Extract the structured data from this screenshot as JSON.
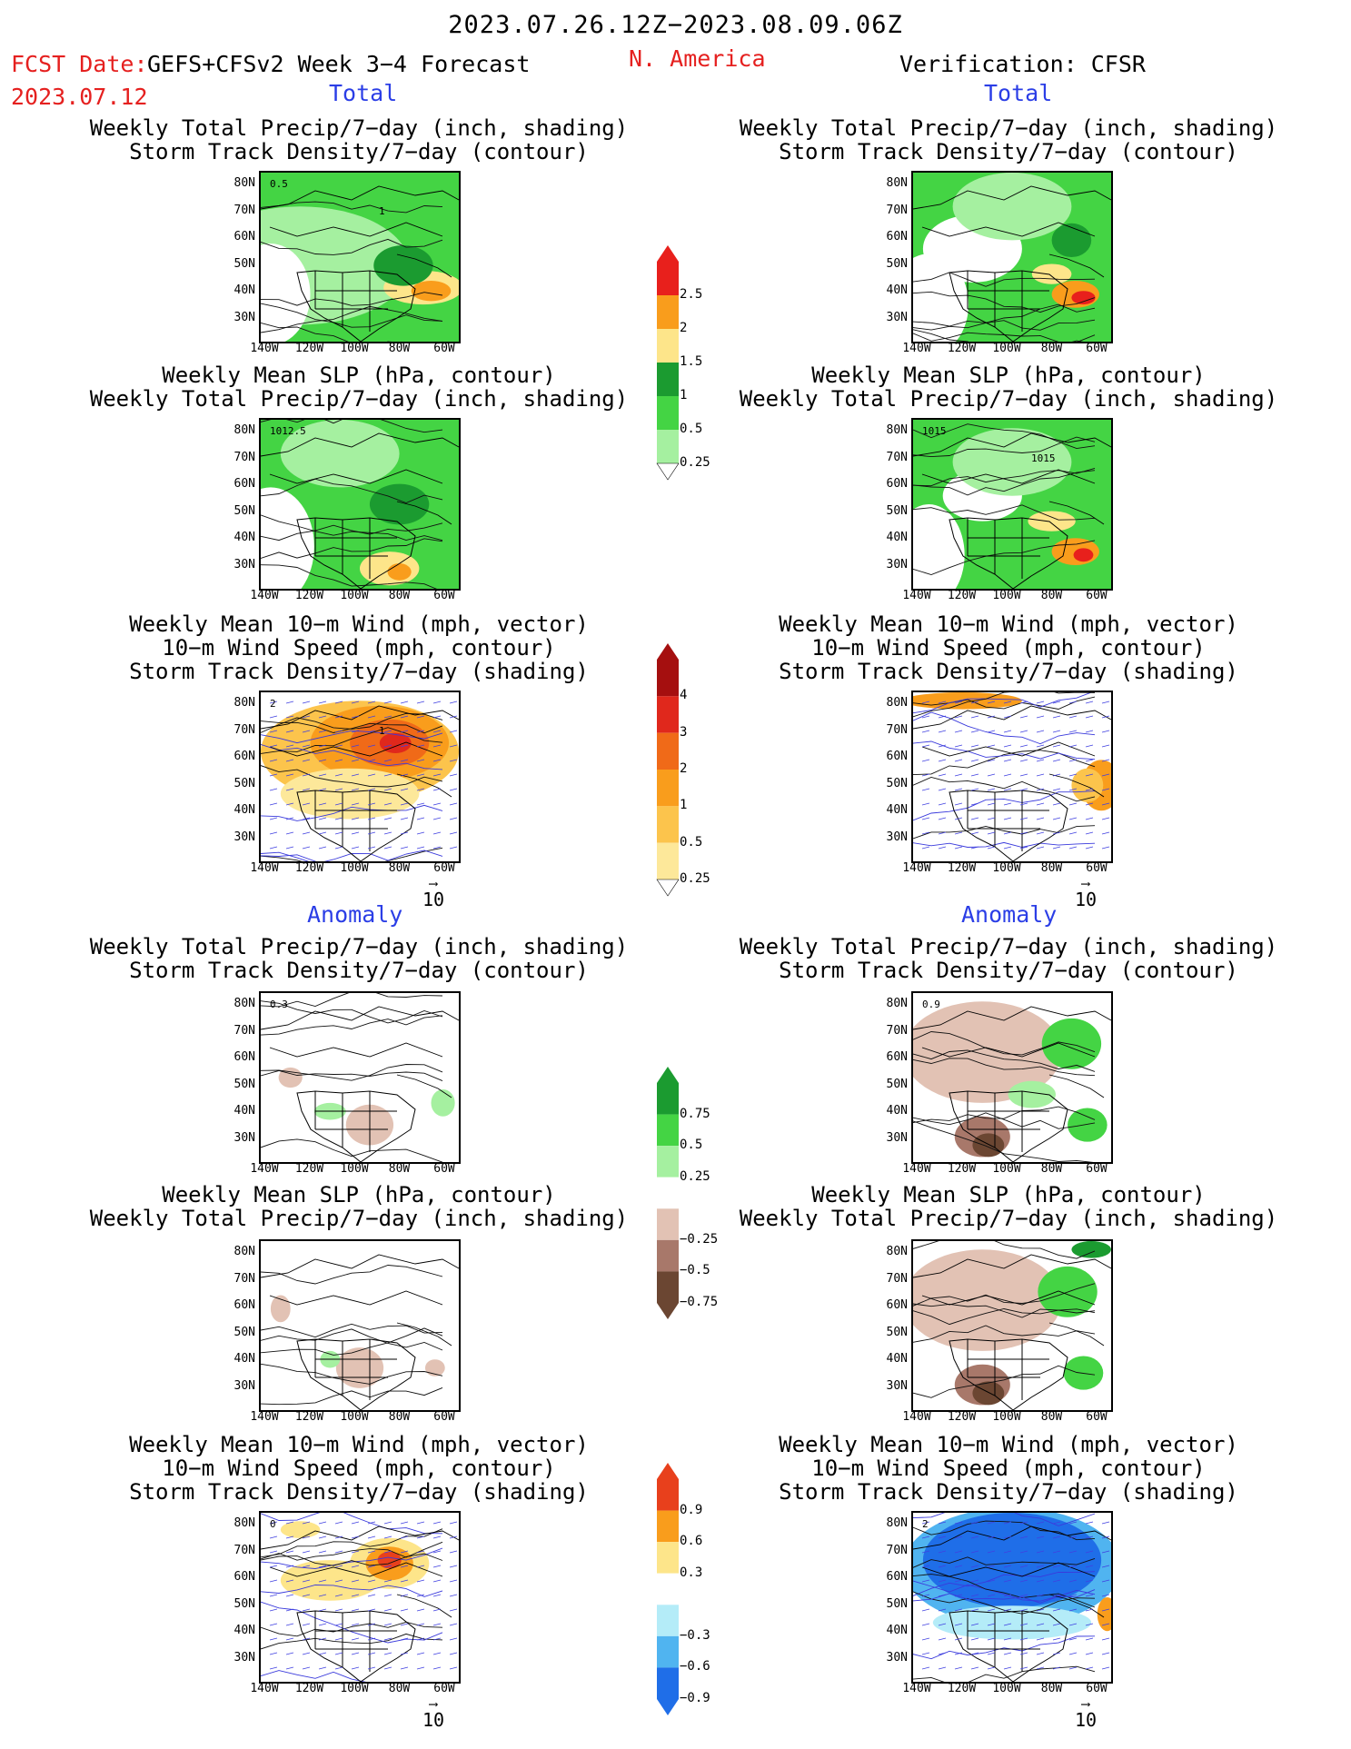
{
  "header": {
    "date_range": "2023.07.26.12Z−2023.08.09.06Z",
    "fcst_label": "FCST Date:",
    "model": "GEFS+CFSv2 Week 3−4 Forecast",
    "fcst_date": "2023.07.12",
    "region": "N. America",
    "verification": "Verification: CFSR"
  },
  "sections": {
    "total": "Total",
    "anomaly": "Anomaly"
  },
  "titles": {
    "precip_storm": [
      "Weekly Total Precip/7−day (inch, shading)",
      "Storm Track Density/7−day (contour)"
    ],
    "slp_precip": [
      "Weekly Mean SLP (hPa, contour)",
      "Weekly Total Precip/7−day (inch, shading)"
    ],
    "wind_storm": [
      "Weekly Mean 10−m Wind (mph, vector)",
      "10−m Wind Speed (mph, contour)",
      "Storm Track Density/7−day (shading)"
    ]
  },
  "axes": {
    "lat_labels": [
      "80N",
      "70N",
      "60N",
      "50N",
      "40N",
      "30N"
    ],
    "lon_labels": [
      "140W",
      "120W",
      "100W",
      "80W",
      "60W"
    ]
  },
  "contour_labels": {
    "fcst_precip_storm": [
      "0.5",
      "1"
    ],
    "fcst_slp": [
      "1012.5"
    ],
    "fcst_wind": [
      "2",
      "1"
    ],
    "obs_slp": [
      "1015",
      "1015"
    ],
    "fcst_anom_storm": [
      "0.3"
    ],
    "obs_anom_storm": [
      "0.9"
    ],
    "fcst_anom_wind": [
      "0"
    ],
    "obs_anom_wind": [
      "2"
    ]
  },
  "vector_reference": "10",
  "colorbars": {
    "precip_total": {
      "labels": [
        "2.5",
        "2",
        "1.5",
        "1",
        "0.5",
        "0.25"
      ],
      "colors": [
        "#e8201c",
        "#f99d1c",
        "#fde58a",
        "#1b9b30",
        "#44d444",
        "#a5f0a0"
      ]
    },
    "storm_total": {
      "labels": [
        "4",
        "3",
        "2",
        "1",
        "0.5",
        "0.25"
      ],
      "colors": [
        "#a50f0f",
        "#e0281c",
        "#f06a18",
        "#f99d1c",
        "#fcc44c",
        "#fde89a"
      ]
    },
    "precip_anom": {
      "labels": [
        "0.75",
        "0.5",
        "0.25",
        "−0.25",
        "−0.5",
        "−0.75"
      ],
      "colors": [
        "#1b9b30",
        "#44d444",
        "#a5f0a0",
        "#ffffff",
        "#e2c2b4",
        "#a8786a",
        "#6b4632"
      ]
    },
    "storm_anom": {
      "labels": [
        "0.9",
        "0.6",
        "0.3",
        "−0.3",
        "−0.6",
        "−0.9"
      ],
      "colors": [
        "#e8401c",
        "#f99d1c",
        "#fde58a",
        "#ffffff",
        "#b4ecf8",
        "#50b4f0",
        "#1f6ee8"
      ]
    }
  },
  "colors": {
    "header_red": "#e5201f",
    "section_blue": "#2b3ee6"
  }
}
